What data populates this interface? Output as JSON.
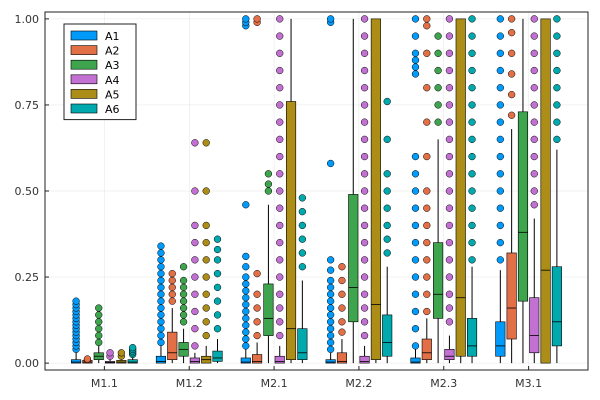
{
  "chart_data": {
    "type": "box",
    "categories": [
      "M1.1",
      "M1.2",
      "M2.1",
      "M2.2",
      "M2.3",
      "M3.1"
    ],
    "yticks": [
      "0.00",
      "0.25",
      "0.50",
      "0.75",
      "1.00"
    ],
    "ylim": [
      0,
      1
    ],
    "grid": true,
    "legend": "top-left",
    "series": [
      {
        "name": "A1",
        "color": "#009AFA",
        "boxes": [
          {
            "min": 0.0,
            "q1": 0.0,
            "median": 0.003,
            "q3": 0.01,
            "max": 0.03,
            "outliers": [
              0.04,
              0.05,
              0.06,
              0.07,
              0.08,
              0.09,
              0.1,
              0.11,
              0.12,
              0.13,
              0.14,
              0.15,
              0.16,
              0.17,
              0.18
            ]
          },
          {
            "min": 0.0,
            "q1": 0.0,
            "median": 0.005,
            "q3": 0.02,
            "max": 0.05,
            "outliers": [
              0.06,
              0.08,
              0.1,
              0.12,
              0.14,
              0.16,
              0.18,
              0.2,
              0.22,
              0.24,
              0.26,
              0.28,
              0.3,
              0.32,
              0.34
            ]
          },
          {
            "min": 0.0,
            "q1": 0.0,
            "median": 0.003,
            "q3": 0.015,
            "max": 0.04,
            "outliers": [
              0.05,
              0.07,
              0.09,
              0.11,
              0.13,
              0.15,
              0.17,
              0.19,
              0.21,
              0.23,
              0.25,
              0.28,
              0.31,
              0.46,
              0.98,
              0.99,
              1.0
            ]
          },
          {
            "min": 0.0,
            "q1": 0.0,
            "median": 0.003,
            "q3": 0.01,
            "max": 0.03,
            "outliers": [
              0.04,
              0.06,
              0.08,
              0.1,
              0.12,
              0.14,
              0.16,
              0.18,
              0.2,
              0.22,
              0.24,
              0.27,
              0.3,
              0.58,
              0.99,
              1.0
            ]
          },
          {
            "min": 0.0,
            "q1": 0.0,
            "median": 0.003,
            "q3": 0.015,
            "max": 0.04,
            "outliers": [
              0.05,
              0.1,
              0.15,
              0.2,
              0.25,
              0.3,
              0.35,
              0.4,
              0.45,
              0.5,
              0.55,
              0.6,
              0.84,
              0.86,
              0.88,
              0.9,
              0.95,
              1.0
            ]
          },
          {
            "min": 0.0,
            "q1": 0.02,
            "median": 0.05,
            "q3": 0.12,
            "max": 0.27,
            "outliers": [
              0.3,
              0.35,
              0.4,
              0.45,
              0.5,
              0.55,
              0.6,
              0.65,
              0.7,
              0.75,
              0.8,
              0.85,
              0.9,
              0.95,
              1.0
            ]
          }
        ]
      },
      {
        "name": "A2",
        "color": "#E26F46",
        "boxes": [
          {
            "min": 0.0,
            "q1": 0.0,
            "median": 0.003,
            "q3": 0.008,
            "max": 0.01,
            "outliers": [
              0.01,
              0.012
            ]
          },
          {
            "min": 0.0,
            "q1": 0.01,
            "median": 0.03,
            "q3": 0.09,
            "max": 0.16,
            "outliers": [
              0.18,
              0.2,
              0.22,
              0.24,
              0.26
            ]
          },
          {
            "min": 0.0,
            "q1": 0.0,
            "median": 0.005,
            "q3": 0.025,
            "max": 0.06,
            "outliers": [
              0.08,
              0.12,
              0.16,
              0.2,
              0.26,
              0.99,
              1.0
            ]
          },
          {
            "min": 0.0,
            "q1": 0.0,
            "median": 0.005,
            "q3": 0.03,
            "max": 0.07,
            "outliers": [
              0.09,
              0.12,
              0.16,
              0.2,
              0.24,
              0.28
            ]
          },
          {
            "min": 0.0,
            "q1": 0.01,
            "median": 0.03,
            "q3": 0.07,
            "max": 0.13,
            "outliers": [
              0.15,
              0.2,
              0.25,
              0.3,
              0.35,
              0.4,
              0.45,
              0.5,
              0.6,
              0.7,
              0.8,
              0.9,
              0.98,
              1.0
            ]
          },
          {
            "min": 0.0,
            "q1": 0.07,
            "median": 0.16,
            "q3": 0.32,
            "max": 0.68,
            "outliers": [
              0.72,
              0.78,
              0.84,
              0.9,
              0.96,
              1.0
            ]
          }
        ]
      },
      {
        "name": "A3",
        "color": "#3EA44E",
        "boxes": [
          {
            "min": 0.0,
            "q1": 0.01,
            "median": 0.02,
            "q3": 0.03,
            "max": 0.05,
            "outliers": [
              0.06,
              0.08,
              0.1,
              0.12,
              0.14,
              0.16
            ]
          },
          {
            "min": 0.0,
            "q1": 0.02,
            "median": 0.04,
            "q3": 0.06,
            "max": 0.1,
            "outliers": [
              0.12,
              0.14,
              0.16,
              0.18,
              0.2,
              0.22,
              0.24,
              0.28
            ]
          },
          {
            "min": 0.0,
            "q1": 0.08,
            "median": 0.13,
            "q3": 0.23,
            "max": 0.46,
            "outliers": [
              0.5,
              0.52,
              0.55
            ]
          },
          {
            "min": 0.0,
            "q1": 0.12,
            "median": 0.22,
            "q3": 0.49,
            "max": 1.0,
            "outliers": []
          },
          {
            "min": 0.0,
            "q1": 0.13,
            "median": 0.2,
            "q3": 0.35,
            "max": 0.65,
            "outliers": [
              0.7,
              0.75,
              0.8,
              0.85,
              0.9,
              0.95
            ]
          },
          {
            "min": 0.0,
            "q1": 0.18,
            "median": 0.38,
            "q3": 0.73,
            "max": 1.0,
            "outliers": []
          }
        ]
      },
      {
        "name": "A4",
        "color": "#C271D2",
        "boxes": [
          {
            "min": 0.0,
            "q1": 0.0,
            "median": 0.002,
            "q3": 0.005,
            "max": 0.01,
            "outliers": [
              0.02,
              0.03
            ]
          },
          {
            "min": 0.0,
            "q1": 0.0,
            "median": 0.005,
            "q3": 0.015,
            "max": 0.03,
            "outliers": [
              0.05,
              0.1,
              0.15,
              0.2,
              0.25,
              0.3,
              0.35,
              0.4,
              0.5,
              0.64
            ]
          },
          {
            "min": 0.0,
            "q1": 0.0,
            "median": 0.005,
            "q3": 0.02,
            "max": 0.05,
            "outliers": [
              0.08,
              0.12,
              0.16,
              0.2,
              0.25,
              0.3,
              0.35,
              0.4,
              0.45,
              0.5,
              0.55,
              0.6,
              0.65,
              0.7,
              0.75,
              0.8,
              0.85,
              0.9,
              0.95,
              1.0
            ]
          },
          {
            "min": 0.0,
            "q1": 0.0,
            "median": 0.005,
            "q3": 0.02,
            "max": 0.05,
            "outliers": [
              0.08,
              0.12,
              0.16,
              0.2,
              0.25,
              0.3,
              0.35,
              0.4,
              0.45,
              0.5,
              0.55,
              0.6,
              0.65,
              0.7,
              0.75,
              0.8,
              0.85,
              0.9,
              0.95,
              1.0
            ]
          },
          {
            "min": 0.0,
            "q1": 0.01,
            "median": 0.02,
            "q3": 0.04,
            "max": 0.08,
            "outliers": [
              0.12,
              0.16,
              0.2,
              0.25,
              0.3,
              0.35,
              0.4,
              0.45,
              0.5,
              0.55,
              0.6,
              0.65,
              0.7,
              0.75,
              0.8,
              0.85,
              0.9,
              0.95,
              1.0
            ]
          },
          {
            "min": 0.0,
            "q1": 0.03,
            "median": 0.08,
            "q3": 0.19,
            "max": 0.42,
            "outliers": [
              0.46,
              0.5,
              0.55,
              0.6,
              0.65,
              0.7,
              0.75,
              0.8,
              0.85,
              0.9,
              0.95,
              1.0
            ]
          }
        ]
      },
      {
        "name": "A5",
        "color": "#AC8D18",
        "boxes": [
          {
            "min": 0.0,
            "q1": 0.0,
            "median": 0.003,
            "q3": 0.008,
            "max": 0.01,
            "outliers": [
              0.02,
              0.03
            ]
          },
          {
            "min": 0.0,
            "q1": 0.0,
            "median": 0.01,
            "q3": 0.02,
            "max": 0.05,
            "outliers": [
              0.08,
              0.12,
              0.16,
              0.2,
              0.25,
              0.3,
              0.35,
              0.4,
              0.5,
              0.64
            ]
          },
          {
            "min": 0.0,
            "q1": 0.01,
            "median": 0.1,
            "q3": 0.76,
            "max": 1.0,
            "outliers": []
          },
          {
            "min": 0.0,
            "q1": 0.01,
            "median": 0.17,
            "q3": 1.0,
            "max": 1.0,
            "outliers": []
          },
          {
            "min": 0.0,
            "q1": 0.02,
            "median": 0.19,
            "q3": 1.0,
            "max": 1.0,
            "outliers": []
          },
          {
            "min": 0.0,
            "q1": 0.0,
            "median": 0.27,
            "q3": 1.0,
            "max": 1.0,
            "outliers": []
          }
        ]
      },
      {
        "name": "A6",
        "color": "#00A9AD",
        "boxes": [
          {
            "min": 0.0,
            "q1": 0.0,
            "median": 0.003,
            "q3": 0.01,
            "max": 0.02,
            "outliers": [
              0.025,
              0.03,
              0.035,
              0.04,
              0.045
            ]
          },
          {
            "min": 0.0,
            "q1": 0.005,
            "median": 0.015,
            "q3": 0.035,
            "max": 0.07,
            "outliers": [
              0.1,
              0.14,
              0.18,
              0.22,
              0.26,
              0.3,
              0.33,
              0.36
            ]
          },
          {
            "min": 0.0,
            "q1": 0.01,
            "median": 0.03,
            "q3": 0.1,
            "max": 0.24,
            "outliers": [
              0.28,
              0.32,
              0.36,
              0.4,
              0.44,
              0.48
            ]
          },
          {
            "min": 0.0,
            "q1": 0.02,
            "median": 0.06,
            "q3": 0.14,
            "max": 0.28,
            "outliers": [
              0.32,
              0.36,
              0.4,
              0.45,
              0.5,
              0.55,
              0.65,
              0.76
            ]
          },
          {
            "min": 0.0,
            "q1": 0.02,
            "median": 0.05,
            "q3": 0.13,
            "max": 0.28,
            "outliers": [
              0.3,
              0.35,
              0.4,
              0.45,
              0.5,
              0.55,
              0.6,
              0.65,
              0.7,
              0.75,
              0.8,
              0.85,
              0.9,
              0.95,
              1.0
            ]
          },
          {
            "min": 0.0,
            "q1": 0.05,
            "median": 0.12,
            "q3": 0.28,
            "max": 0.62,
            "outliers": [
              0.65,
              0.7,
              0.75,
              0.8,
              0.85,
              0.9,
              0.95,
              1.0
            ]
          }
        ]
      }
    ]
  }
}
